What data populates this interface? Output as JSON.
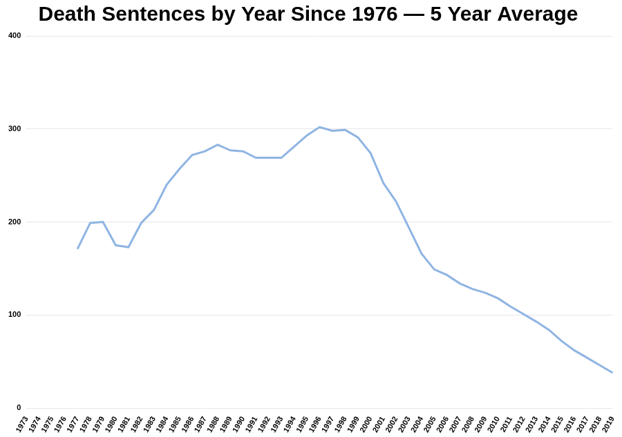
{
  "chart_data": {
    "type": "line",
    "title": "Death Sentences by Year Since 1976 — 5 Year Average",
    "categories": [
      "1973",
      "1974",
      "1975",
      "1976",
      "1977",
      "1978",
      "1979",
      "1980",
      "1981",
      "1982",
      "1983",
      "1984",
      "1985",
      "1986",
      "1987",
      "1988",
      "1989",
      "1990",
      "1991",
      "1992",
      "1993",
      "1994",
      "1995",
      "1996",
      "1997",
      "1998",
      "1999",
      "2000",
      "2001",
      "2002",
      "2003",
      "2004",
      "2005",
      "2006",
      "2007",
      "2008",
      "2009",
      "2010",
      "2011",
      "2012",
      "2013",
      "2014",
      "2015",
      "2016",
      "2017",
      "2018",
      "2019"
    ],
    "values": [
      null,
      null,
      null,
      null,
      171,
      199,
      200,
      175,
      173,
      199,
      213,
      240,
      257,
      272,
      276,
      283,
      277,
      276,
      269,
      269,
      269,
      281,
      293,
      302,
      298,
      299,
      291,
      274,
      242,
      222,
      194,
      166,
      149,
      143,
      134,
      128,
      124,
      118,
      109,
      101,
      93,
      84,
      72,
      62,
      54,
      46,
      38
    ],
    "color": "#8fb4e3",
    "ylim": [
      0,
      400
    ],
    "yticks": [
      0,
      100,
      200,
      300,
      400
    ],
    "grid": true
  }
}
